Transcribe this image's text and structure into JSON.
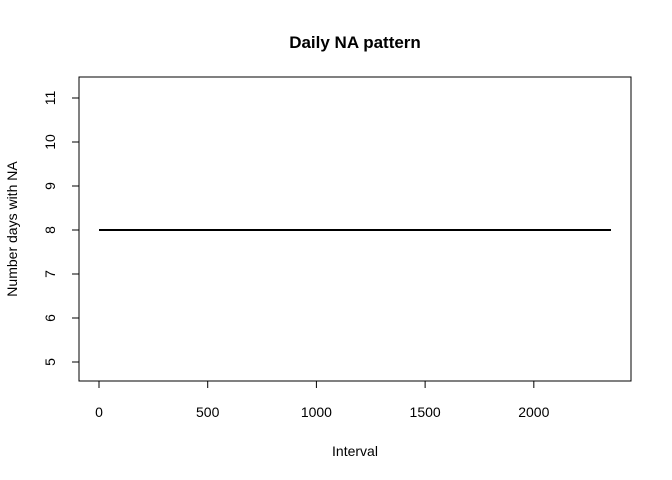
{
  "chart_data": {
    "type": "line",
    "title": "Daily NA pattern",
    "xlabel": "Interval",
    "ylabel": "Number days with NA",
    "xlim": [
      0,
      2355
    ],
    "ylim": [
      5,
      11
    ],
    "x_ticks": [
      "0",
      "500",
      "1000",
      "1500",
      "2000"
    ],
    "y_ticks": [
      "5",
      "6",
      "7",
      "8",
      "9",
      "10",
      "11"
    ],
    "grid": false,
    "series": [
      {
        "x": [
          0,
          2355
        ],
        "values": [
          8,
          8
        ],
        "color": "#000000"
      }
    ]
  }
}
